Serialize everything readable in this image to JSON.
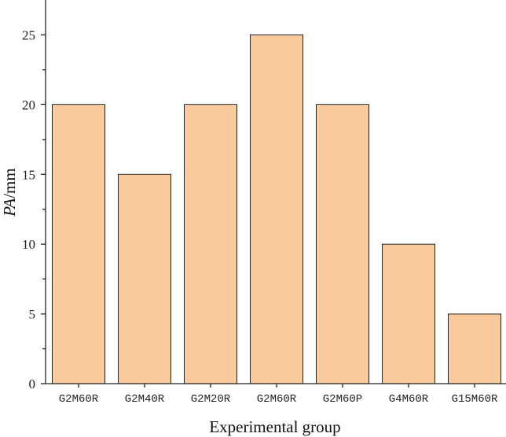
{
  "chart_data": {
    "type": "bar",
    "categories": [
      "G2M60R",
      "G2M40R",
      "G2M20R",
      "G2M60R",
      "G2M60P",
      "G4M60R",
      "G15M60R"
    ],
    "values": [
      20,
      15,
      20,
      25,
      20,
      10,
      5
    ],
    "title": "",
    "xlabel": "Experimental group",
    "ylabel_italic": "PA",
    "ylabel_unit": "/mm",
    "ylim": [
      0,
      27.5
    ],
    "yticks": [
      0,
      5,
      10,
      15,
      20,
      25
    ],
    "grid": false,
    "legend": "none",
    "bar_color": "#f9c89b",
    "edge_color": "#222222",
    "axis_color": "#222222"
  }
}
